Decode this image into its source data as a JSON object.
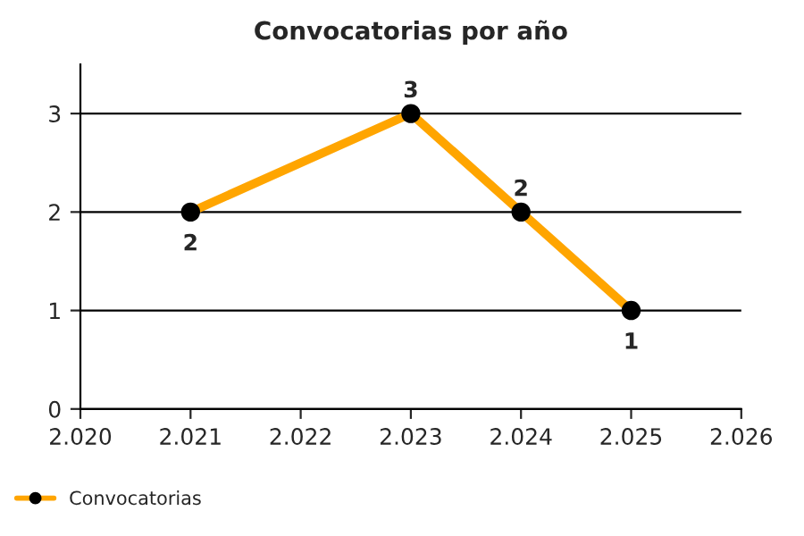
{
  "chart_data": {
    "type": "line",
    "title": "Convocatorias por año",
    "x": [
      2021,
      2023,
      2024,
      2025
    ],
    "series": [
      {
        "name": "Convocatorias",
        "color": "#ffa500",
        "values": [
          2,
          3,
          2,
          1
        ]
      }
    ],
    "xlim": [
      2020,
      2026
    ],
    "xticks": [
      {
        "value": 2020,
        "label": "2.020"
      },
      {
        "value": 2021,
        "label": "2.021"
      },
      {
        "value": 2022,
        "label": "2.022"
      },
      {
        "value": 2023,
        "label": "2.023"
      },
      {
        "value": 2024,
        "label": "2.024"
      },
      {
        "value": 2025,
        "label": "2.025"
      },
      {
        "value": 2026,
        "label": "2.026"
      }
    ],
    "ylim": [
      0,
      3.5
    ],
    "yticks": [
      0,
      1,
      2,
      3
    ],
    "grid": "y",
    "legend": "bottom left",
    "marker": "circle",
    "line_style": "solid",
    "data_labels": true
  }
}
